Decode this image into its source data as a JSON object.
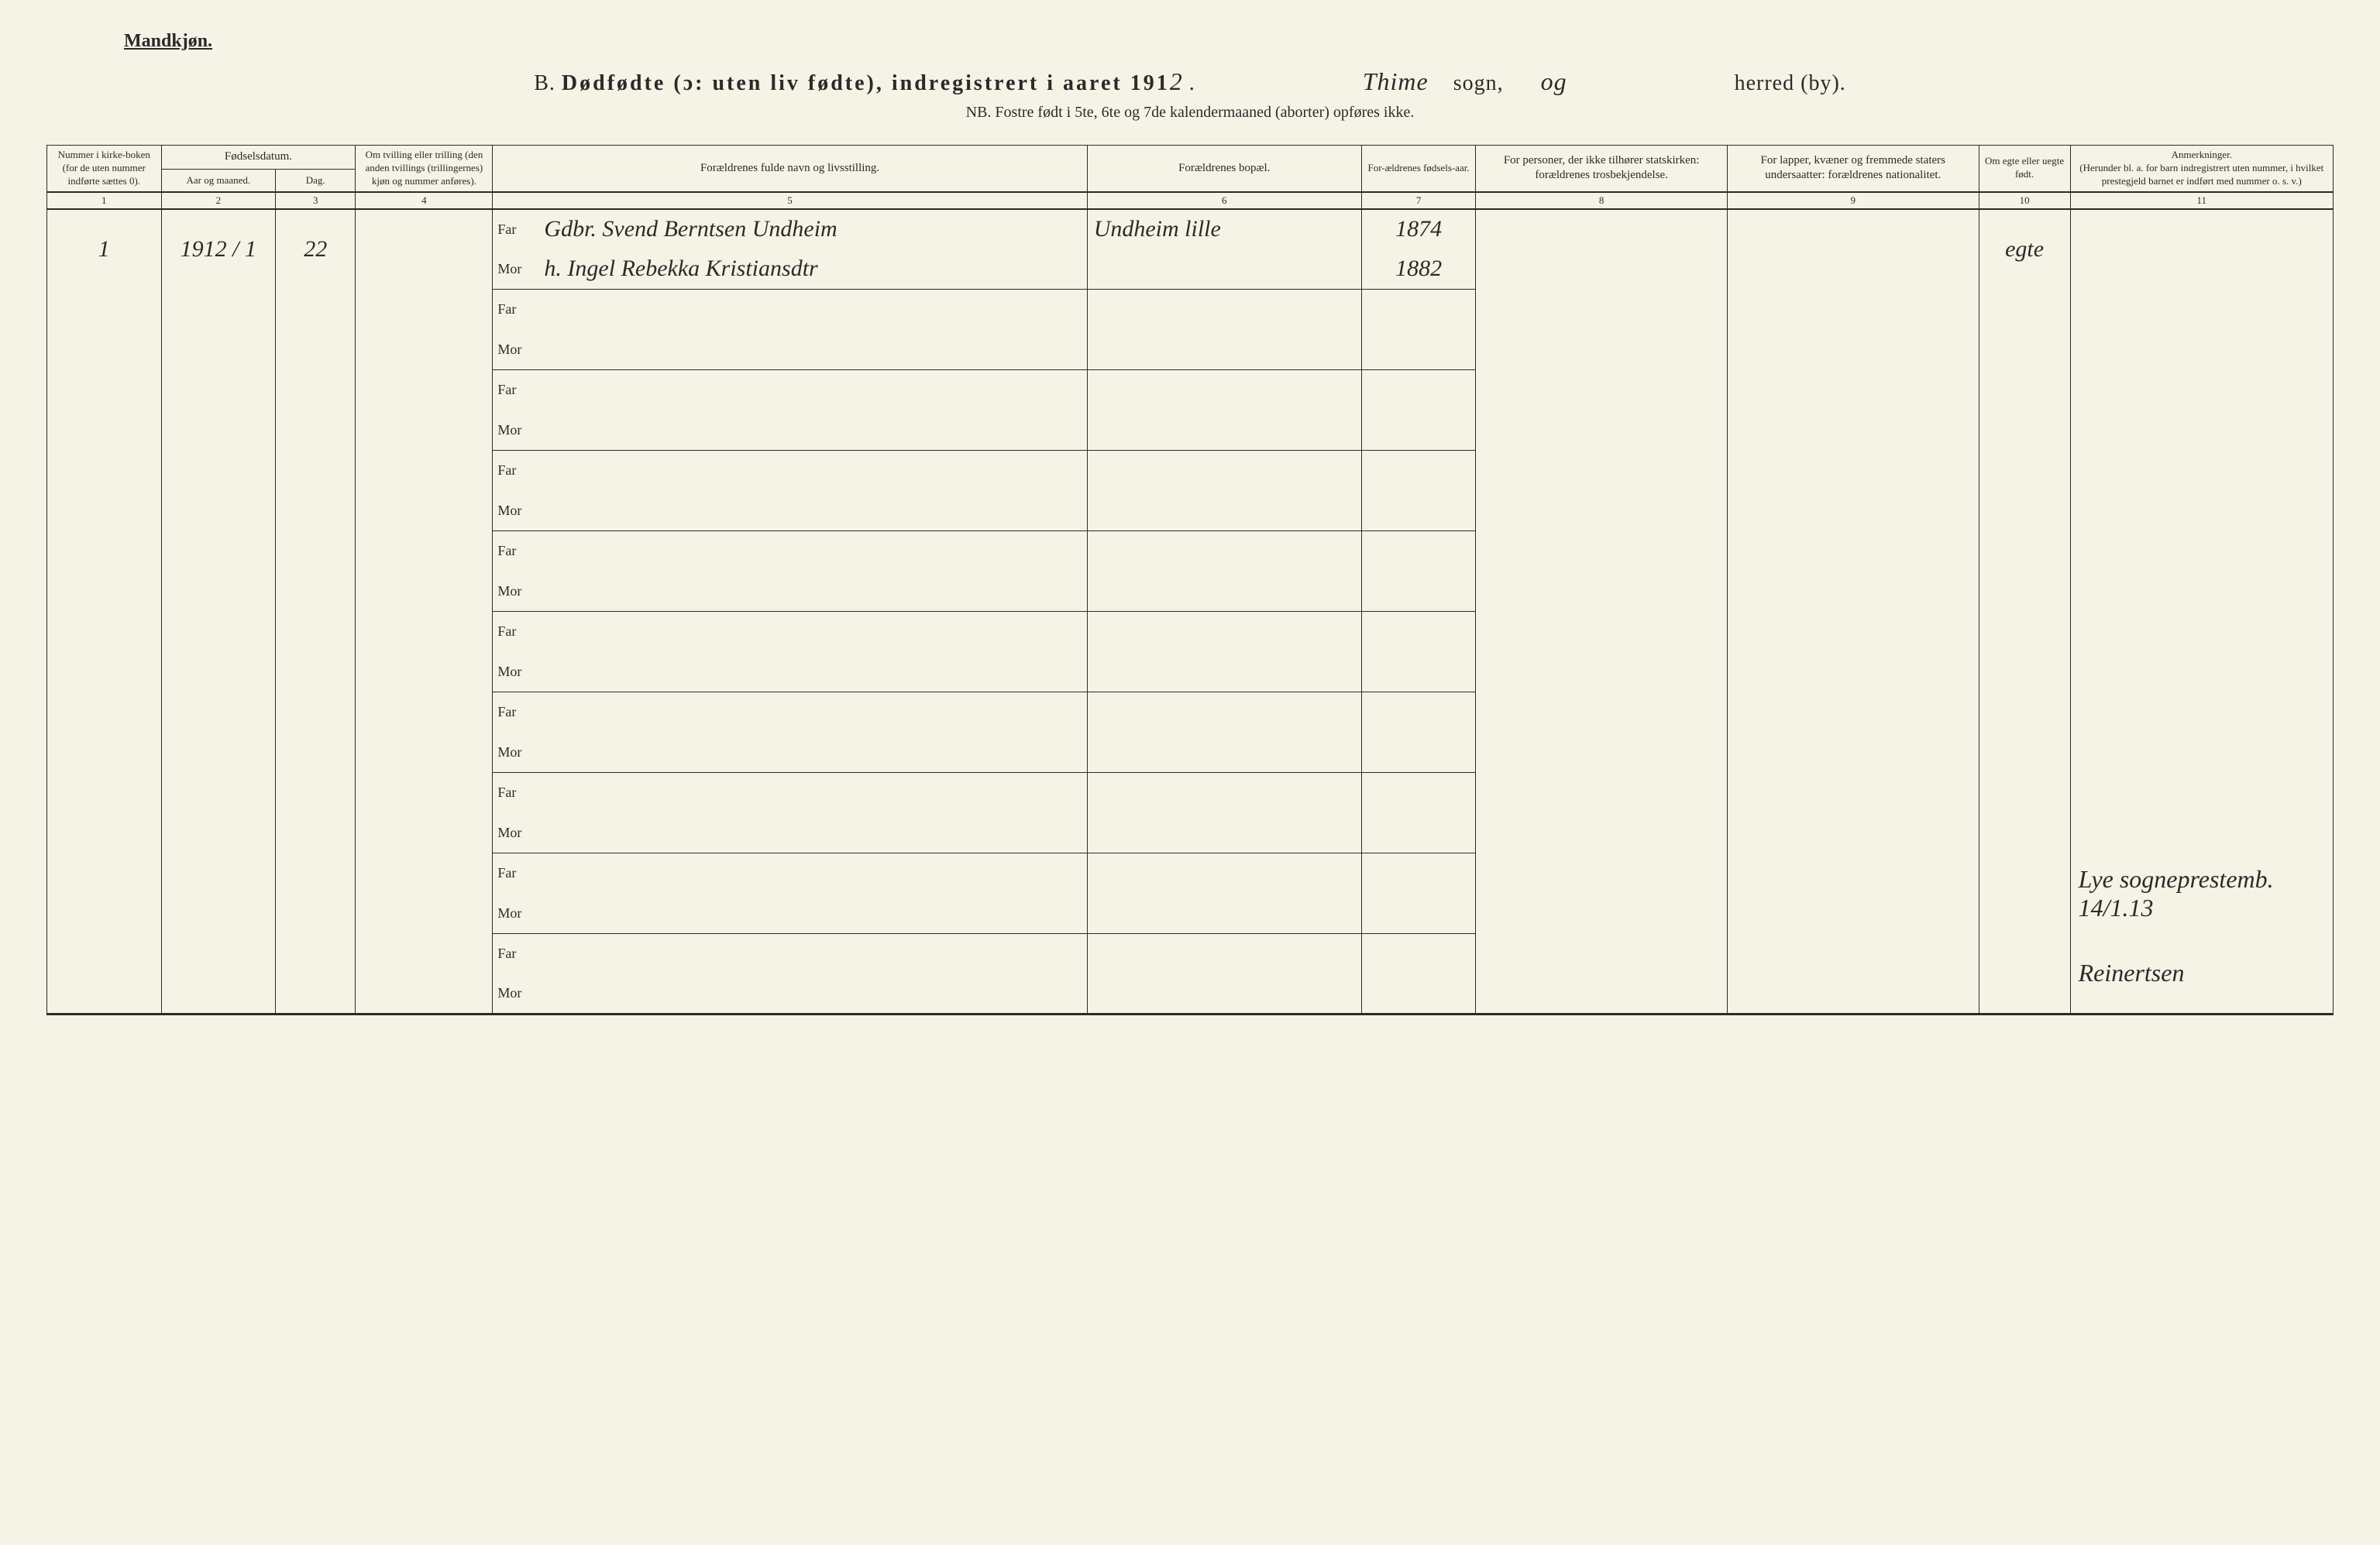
{
  "header": {
    "gender": "Mandkjøn.",
    "section_letter": "B.",
    "title_main": "Dødfødte (ɔ: uten liv fødte), indregistrert i aaret 191",
    "year_suffix": "2",
    "sogn_value": "Thime",
    "sogn_label": "sogn,",
    "herred_value": "og",
    "herred_label": "herred (by).",
    "note": "NB. Fostre født i 5te, 6te og 7de kalendermaaned (aborter) opføres ikke."
  },
  "columns": {
    "c1": "Nummer i kirke-boken (for de uten nummer indførte sættes 0).",
    "c2_span": "Fødselsdatum.",
    "c2a": "Aar og maaned.",
    "c2b": "Dag.",
    "c4": "Om tvilling eller trilling (den anden tvillings (trillingernes) kjøn og nummer anføres).",
    "c5": "Forældrenes fulde navn og livsstilling.",
    "c6": "Forældrenes bopæl.",
    "c7": "For-ældrenes fødsels-aar.",
    "c8": "For personer, der ikke tilhører statskirken: forældrenes trosbekjendelse.",
    "c9": "For lapper, kvæner og fremmede staters undersaatter: forældrenes nationalitet.",
    "c10": "Om egte eller uegte født.",
    "c11_title": "Anmerkninger.",
    "c11_sub": "(Herunder bl. a. for barn indregistrert uten nummer, i hvilket prestegjeld barnet er indført med nummer o. s. v.)"
  },
  "colnums": [
    "1",
    "2",
    "3",
    "4",
    "5",
    "6",
    "7",
    "8",
    "9",
    "10",
    "11"
  ],
  "row_labels": {
    "far": "Far",
    "mor": "Mor"
  },
  "entries": [
    {
      "num": "1",
      "year_month": "1912 / 1",
      "day": "22",
      "twin": "",
      "far_name": "Gdbr. Svend Berntsen Undheim",
      "mor_name": "h. Ingel Rebekka Kristiansdtr",
      "far_bopael": "Undheim lille",
      "mor_bopael": "",
      "far_year": "1874",
      "mor_year": "1882",
      "c8": "",
      "c9": "",
      "egte": "egte",
      "anm": ""
    }
  ],
  "blank_rows": 9,
  "signature_lines": [
    "Lye sogneprestemb. 14/1.13",
    "Reinertsen"
  ],
  "style": {
    "background": "#f5f3e6",
    "ink": "#2a2a2a",
    "header_font_size": 28,
    "cell_font_size": 16,
    "script_font_size": 30,
    "col_widths_pct": [
      5,
      5,
      3.5,
      6,
      26,
      12,
      5,
      11,
      11,
      4,
      11.5
    ]
  }
}
